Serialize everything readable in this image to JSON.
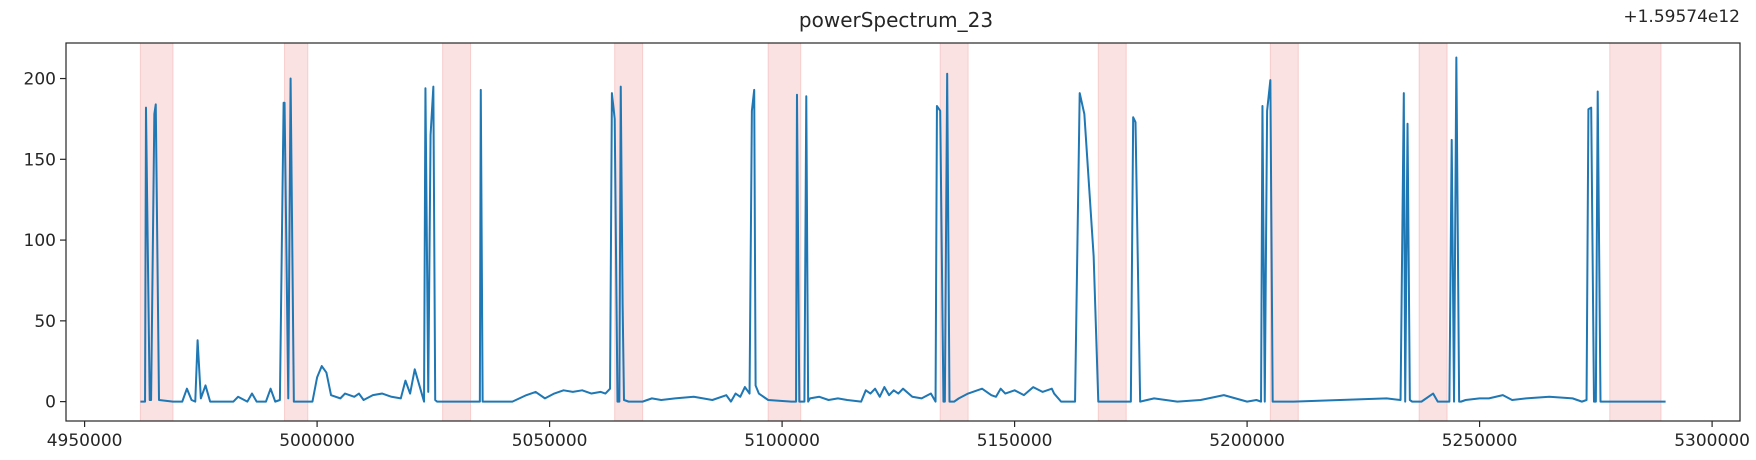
{
  "chart_data": {
    "type": "line",
    "title": "powerSpectrum_23",
    "offset_label": "+1.59574e12",
    "xlabel": "",
    "ylabel": "",
    "xlim": [
      4946000,
      5306000
    ],
    "ylim": [
      -12,
      222
    ],
    "x_ticks": [
      4950000,
      5000000,
      5050000,
      5100000,
      5150000,
      5200000,
      5250000,
      5300000
    ],
    "x_tick_labels": [
      "4950000",
      "5000000",
      "5050000",
      "5100000",
      "5150000",
      "5200000",
      "5250000",
      "5300000"
    ],
    "y_ticks": [
      0,
      50,
      100,
      150,
      200
    ],
    "y_tick_labels": [
      "0",
      "50",
      "100",
      "150",
      "200"
    ],
    "grid": false,
    "line_color": "#1f77b4",
    "span_color": "#f4b6b6",
    "highlight_spans": [
      [
        4962000,
        4969000
      ],
      [
        4993000,
        4998000
      ],
      [
        5027000,
        5033000
      ],
      [
        5064000,
        5070000
      ],
      [
        5097000,
        5104000
      ],
      [
        5134000,
        5140000
      ],
      [
        5168000,
        5174000
      ],
      [
        5205000,
        5211000
      ],
      [
        5237000,
        5243000
      ],
      [
        5278000,
        5289000
      ]
    ],
    "series": [
      {
        "x": [
          4962000,
          4963000,
          4963200,
          4964000,
          4964300,
          4965000,
          4965300,
          4966000,
          4969000,
          4971000,
          4972000,
          4973000,
          4973800,
          4974300,
          4975000,
          4976000,
          4977000,
          4980000,
          4982000,
          4983000,
          4985000,
          4986000,
          4987000,
          4989000,
          4990000,
          4991000,
          4992000,
          4992800,
          4993000,
          4993800,
          4994300,
          4995000,
          4995600,
          4996400,
          4997000,
          4999000,
          5000000,
          5001000,
          5002000,
          5003000,
          5005000,
          5006000,
          5008000,
          5009000,
          5010000,
          5012000,
          5014000,
          5016000,
          5018000,
          5019000,
          5020000,
          5021000,
          5022000,
          5023000,
          5023300,
          5023900,
          5024400,
          5025000,
          5025400,
          5025800,
          5030000,
          5035000,
          5035200,
          5035600,
          5036000,
          5042000,
          5045000,
          5047000,
          5049000,
          5051000,
          5053000,
          5055000,
          5057000,
          5059000,
          5061000,
          5062000,
          5063000,
          5063400,
          5064000,
          5064600,
          5065000,
          5065300,
          5065700,
          5066000,
          5067000,
          5070000,
          5072000,
          5074000,
          5077000,
          5081000,
          5085000,
          5088000,
          5089000,
          5090000,
          5091000,
          5092000,
          5093000,
          5093500,
          5094000,
          5094300,
          5095000,
          5097000,
          5102000,
          5103000,
          5103200,
          5103700,
          5104000,
          5104800,
          5105200,
          5105600,
          5106000,
          5108000,
          5110000,
          5112000,
          5114000,
          5117000,
          5118000,
          5119000,
          5120000,
          5121000,
          5122000,
          5123000,
          5124000,
          5125000,
          5126000,
          5128000,
          5130000,
          5132000,
          5133000,
          5133300,
          5134000,
          5134700,
          5135000,
          5135500,
          5136000,
          5136500,
          5137000,
          5138000,
          5140000,
          5143000,
          5145000,
          5146000,
          5147000,
          5148000,
          5150000,
          5152000,
          5154000,
          5156000,
          5158000,
          5158500,
          5160000,
          5163000,
          5164000,
          5165000,
          5167000,
          5168000,
          5170000,
          5174000,
          5175000,
          5175500,
          5176000,
          5177000,
          5180000,
          5185000,
          5190000,
          5195000,
          5200000,
          5202000,
          5203000,
          5203300,
          5203800,
          5204300,
          5205000,
          5205500,
          5206000,
          5207000,
          5210000,
          5220000,
          5230000,
          5233000,
          5233700,
          5234000,
          5234500,
          5235000,
          5235500,
          5236000,
          5236500,
          5237000,
          5237500,
          5240000,
          5241000,
          5242000,
          5243000,
          5243500,
          5244000,
          5244500,
          5245000,
          5245600,
          5246000,
          5247000,
          5250000,
          5252000,
          5255000,
          5257000,
          5260000,
          5265000,
          5270000,
          5272000,
          5273000,
          5273400,
          5274000,
          5274600,
          5275000,
          5275400,
          5276000,
          5276800,
          5280000,
          5285000,
          5290000
        ],
        "y": [
          0,
          0,
          182,
          1,
          1,
          178,
          184,
          1,
          0,
          0,
          8,
          1,
          0,
          38,
          2,
          10,
          0,
          0,
          0,
          3,
          0,
          5,
          0,
          0,
          8,
          0,
          1,
          185,
          185,
          2,
          200,
          0,
          0,
          0,
          0,
          0,
          15,
          22,
          18,
          4,
          2,
          5,
          3,
          5,
          1,
          4,
          5,
          3,
          2,
          13,
          5,
          20,
          10,
          0,
          194,
          6,
          165,
          195,
          1,
          0,
          0,
          0,
          193,
          0,
          0,
          0,
          4,
          6,
          2,
          5,
          7,
          6,
          7,
          5,
          6,
          5,
          8,
          191,
          175,
          0,
          0,
          195,
          60,
          1,
          0,
          0,
          2,
          1,
          2,
          3,
          1,
          4,
          0,
          5,
          3,
          9,
          5,
          180,
          193,
          10,
          5,
          1,
          0,
          0,
          190,
          0,
          0,
          0,
          189,
          0,
          2,
          3,
          1,
          2,
          1,
          0,
          7,
          5,
          8,
          3,
          9,
          4,
          7,
          5,
          8,
          3,
          2,
          5,
          0,
          183,
          180,
          0,
          0,
          203,
          0,
          0,
          0,
          2,
          5,
          8,
          4,
          3,
          8,
          5,
          7,
          4,
          9,
          6,
          8,
          5,
          0,
          0,
          191,
          178,
          90,
          0,
          0,
          0,
          0,
          176,
          173,
          0,
          2,
          0,
          1,
          4,
          0,
          1,
          0,
          183,
          0,
          180,
          199,
          0,
          0,
          0,
          0,
          1,
          2,
          1,
          191,
          0,
          172,
          1,
          0,
          0,
          0,
          0,
          0,
          5,
          0,
          0,
          0,
          0,
          162,
          0,
          213,
          0,
          0,
          1,
          2,
          2,
          4,
          1,
          2,
          3,
          2,
          0,
          1,
          181,
          182,
          0,
          0,
          192,
          0,
          0,
          0,
          0,
          0
        ]
      }
    ]
  }
}
